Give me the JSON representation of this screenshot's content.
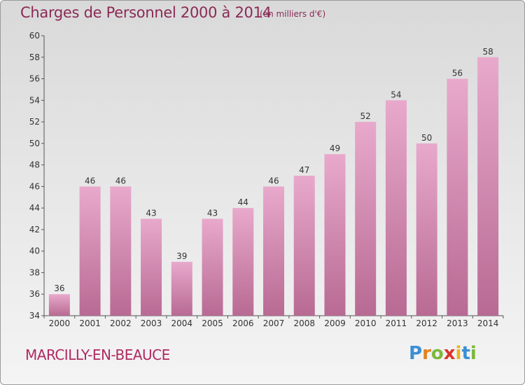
{
  "header": {
    "title": "Charges de Personnel 2000 à 2014",
    "subtitle": "(en milliers d'€)"
  },
  "footer": {
    "commune": "MARCILLY-EN-BEAUCE",
    "logo_text": "Proxiti"
  },
  "colors": {
    "bar_top": "#e8a9cc",
    "bar_bottom": "#b86a93",
    "title": "#8a2a55",
    "commune": "#b02a60"
  },
  "chart_data": {
    "type": "bar",
    "title": "Charges de Personnel 2000 à 2014",
    "subtitle": "(en milliers d'€)",
    "xlabel": "",
    "ylabel": "",
    "ylim": [
      34,
      60
    ],
    "yticks": [
      34,
      36,
      38,
      40,
      42,
      44,
      46,
      48,
      50,
      52,
      54,
      56,
      58,
      60
    ],
    "grid": false,
    "categories": [
      "2000",
      "2001",
      "2002",
      "2003",
      "2004",
      "2005",
      "2006",
      "2007",
      "2008",
      "2009",
      "2010",
      "2011",
      "2012",
      "2013",
      "2014"
    ],
    "values": [
      36,
      46,
      46,
      43,
      39,
      43,
      44,
      46,
      47,
      49,
      52,
      54,
      50,
      56,
      58
    ]
  }
}
